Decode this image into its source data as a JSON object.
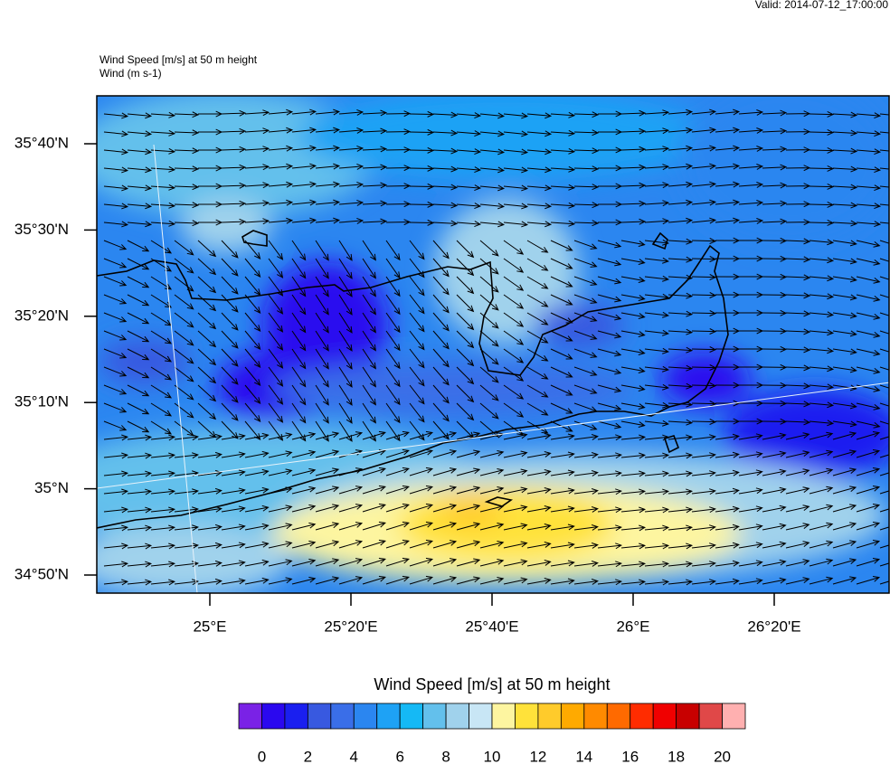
{
  "valid": "Valid: 2014-07-12_17:00:00",
  "title": "Wind Speed [m/s] at 50 m height",
  "subtitle": "Wind   (m s-1)",
  "lat_ticks": [
    "35°40'N",
    "35°30'N",
    "35°20'N",
    "35°10'N",
    "35°N",
    "34°50'N"
  ],
  "lon_ticks": [
    "25°E",
    "25°20'E",
    "25°40'E",
    "26°E",
    "26°20'E"
  ],
  "colorbar": {
    "title": "Wind Speed [m/s] at 50 m height",
    "colors": [
      "#7a22e6",
      "#2b08ef",
      "#1a1ff0",
      "#3859e0",
      "#3a6ee8",
      "#2b86f0",
      "#1ea2f5",
      "#15b9f5",
      "#63c0ec",
      "#a0d2ec",
      "#c8e6f5",
      "#fdf5a0",
      "#ffe23a",
      "#ffcb2b",
      "#ffaa00",
      "#ff8a00",
      "#ff6a00",
      "#ff2c00",
      "#f00000",
      "#c80000",
      "#e04848",
      "#ffb0b0"
    ],
    "ticks": [
      0,
      2,
      4,
      6,
      8,
      10,
      12,
      14,
      16,
      18,
      20
    ]
  }
}
